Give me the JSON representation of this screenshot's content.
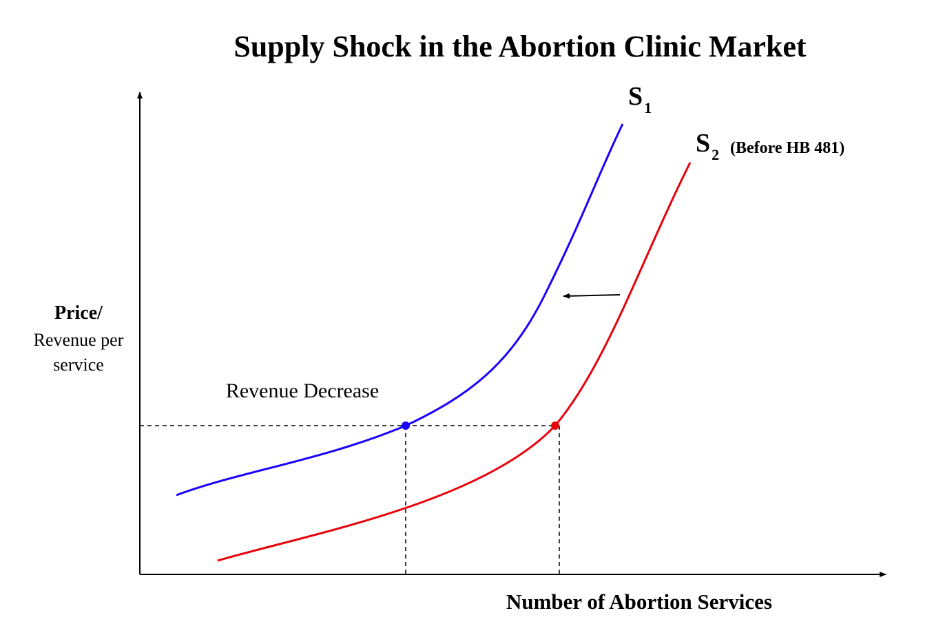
{
  "title": "Supply Shock in the Abortion Clinic Market",
  "y_axis": {
    "label_main": "Price/",
    "label_line2": "Revenue per",
    "label_line3": "service"
  },
  "x_axis": {
    "label": "Number of Abortion Services"
  },
  "curves": {
    "s1": {
      "letter": "S",
      "subscript": "1",
      "color": "#1a00ff"
    },
    "s2": {
      "letter": "S",
      "subscript": "2",
      "note": "(Before HB 481)",
      "color": "#e8000a"
    }
  },
  "annotation": "Revenue Decrease",
  "colors": {
    "axis": "#000000",
    "guide": "#000000"
  }
}
